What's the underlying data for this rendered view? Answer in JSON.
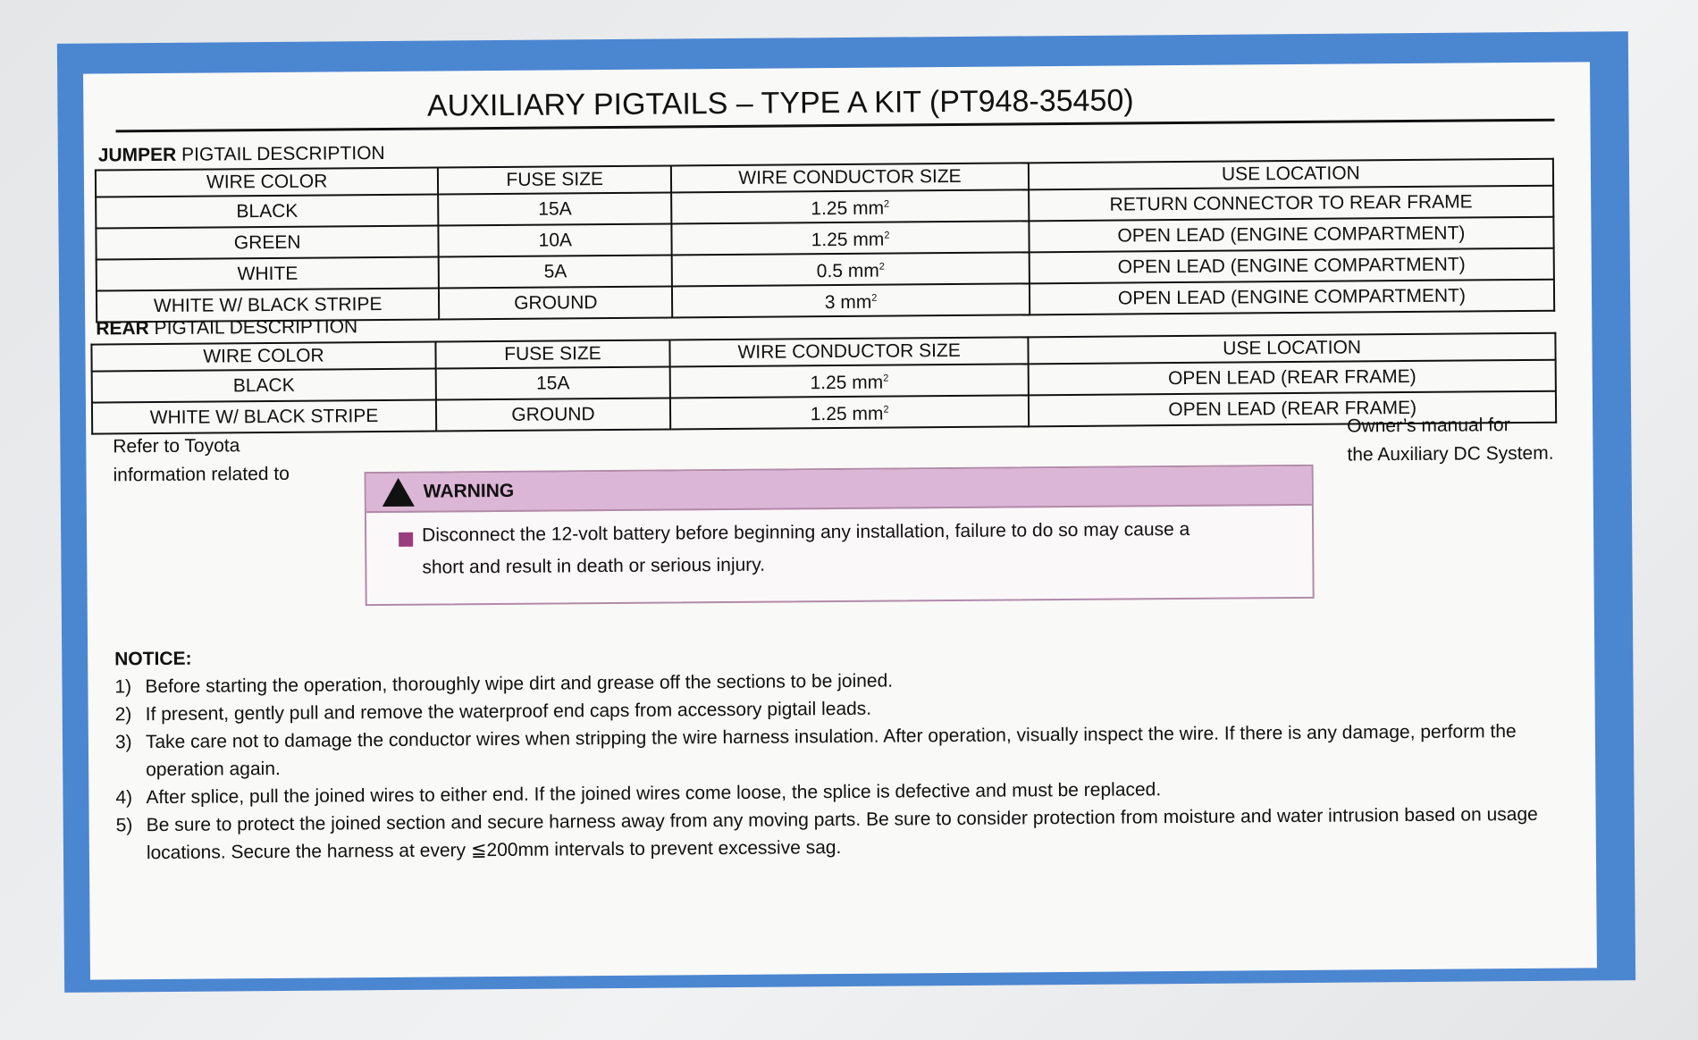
{
  "title": "AUXILIARY PIGTAILS – TYPE A KIT (PT948-35450)",
  "jumper": {
    "label_bold": "JUMPER",
    "label_rest": " PIGTAIL DESCRIPTION",
    "headers": [
      "WIRE COLOR",
      "FUSE SIZE",
      "WIRE CONDUCTOR SIZE",
      "USE LOCATION"
    ],
    "rows": [
      [
        "BLACK",
        "15A",
        "1.25 mm",
        "RETURN CONNECTOR TO REAR FRAME"
      ],
      [
        "GREEN",
        "10A",
        "1.25 mm",
        "OPEN LEAD (ENGINE COMPARTMENT)"
      ],
      [
        "WHITE",
        "5A",
        "0.5 mm",
        "OPEN LEAD (ENGINE COMPARTMENT)"
      ],
      [
        "WHITE W/ BLACK STRIPE",
        "GROUND",
        "3 mm",
        "OPEN LEAD (ENGINE COMPARTMENT)"
      ]
    ]
  },
  "rear": {
    "label_bold": "REAR",
    "label_rest": " PIGTAIL DESCRIPTION",
    "headers": [
      "WIRE COLOR",
      "FUSE SIZE",
      "WIRE CONDUCTOR SIZE",
      "USE LOCATION"
    ],
    "rows": [
      [
        "BLACK",
        "15A",
        "1.25 mm",
        "OPEN LEAD (REAR FRAME)"
      ],
      [
        "WHITE W/ BLACK STRIPE",
        "GROUND",
        "1.25 mm",
        "OPEN LEAD (REAR FRAME)"
      ]
    ]
  },
  "unit_sup": "2",
  "refer": [
    "Refer to Toyota",
    "information related to"
  ],
  "owner": [
    "Owner’s manual for",
    "the Auxiliary DC System."
  ],
  "warning": {
    "title": "WARNING",
    "line1": "Disconnect the 12-volt battery before beginning any installation, failure to do so may cause a",
    "line2": "short and result in death or serious injury.",
    "header_color": "#dcb6d6"
  },
  "notice": {
    "title": "NOTICE:",
    "items": [
      {
        "num": "1)",
        "text": "Before starting the operation, thoroughly wipe dirt and grease off the sections to be joined."
      },
      {
        "num": "2)",
        "text": "If present, gently pull and remove the waterproof end caps from accessory pigtail leads."
      },
      {
        "num": "3)",
        "text": "Take care not to damage the conductor wires when stripping the wire harness insulation.  After operation, visually inspect the wire.  If there is any damage, perform the operation again."
      },
      {
        "num": "4)",
        "text": "After splice, pull the joined wires to either end.  If the joined wires come loose, the splice is defective and must be replaced."
      },
      {
        "num": "5)",
        "text": "Be sure to protect the joined section and secure harness away from any moving parts.  Be sure to consider protection from moisture and water intrusion based on usage locations.  Secure the harness at every ≦200mm intervals to prevent excessive sag."
      }
    ]
  },
  "border_color": "#4b86d1"
}
